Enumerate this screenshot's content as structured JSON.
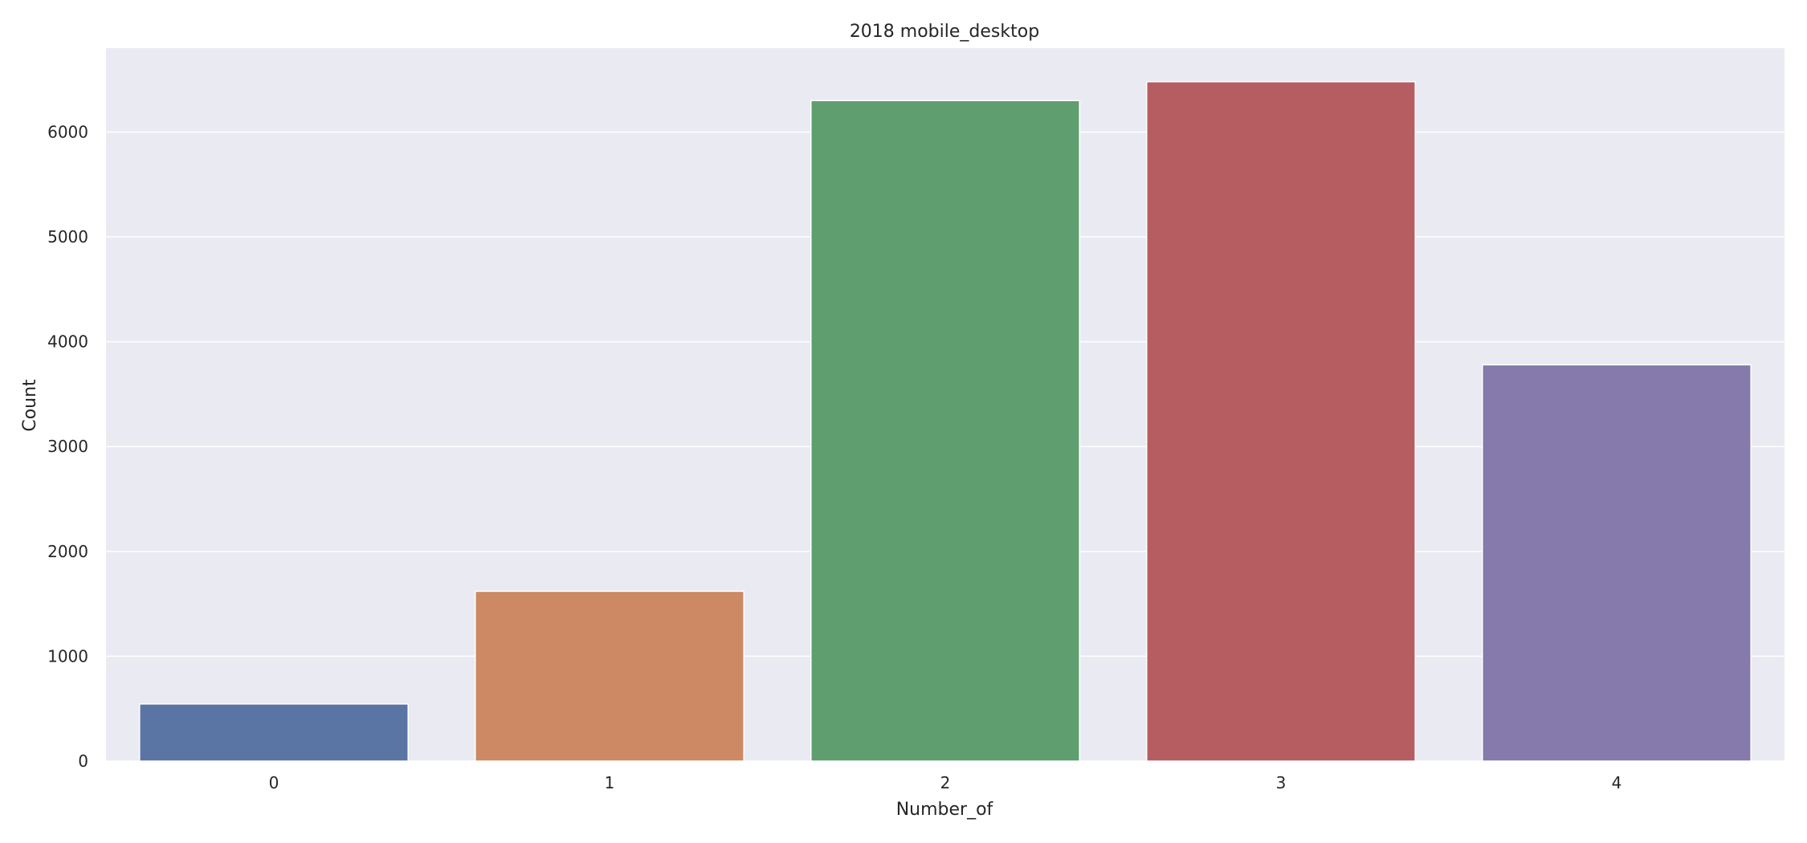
{
  "chart_data": {
    "type": "bar",
    "title": "2018 mobile_desktop",
    "xlabel": "Number_of",
    "ylabel": "Count",
    "categories": [
      "0",
      "1",
      "2",
      "3",
      "4"
    ],
    "values": [
      545,
      1620,
      6300,
      6480,
      3780
    ],
    "colors": [
      "#5a75a4",
      "#cc8963",
      "#5f9e6e",
      "#b55d60",
      "#857aab"
    ],
    "ylim": [
      0,
      6800
    ],
    "yticks": [
      0,
      1000,
      2000,
      3000,
      4000,
      5000,
      6000
    ],
    "yticks_labels": [
      "0",
      "1000",
      "2000",
      "3000",
      "4000",
      "5000",
      "6000"
    ],
    "grid": true,
    "background": "#eaeaf2",
    "grid_color": "#ffffff"
  }
}
